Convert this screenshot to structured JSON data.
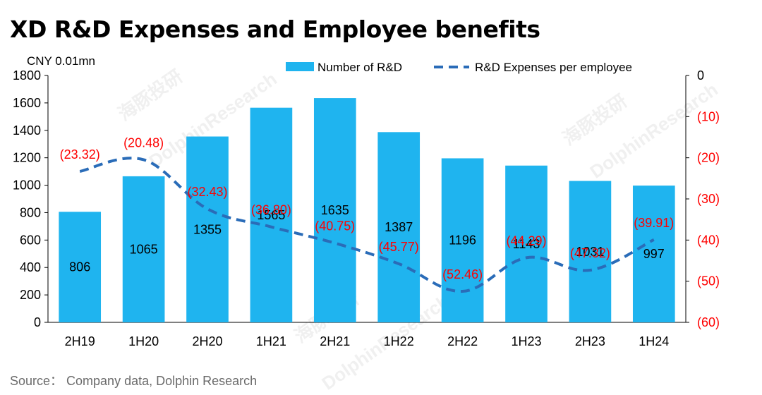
{
  "title": "XD R&D Expenses and Employee benefits",
  "unit_label": "CNY 0.01mn",
  "source": "Source： Company data, Dolphin Research",
  "watermarks": [
    "海豚投研",
    "DolphinResearch",
    "海豚投研",
    "DolphinResearch",
    "海豚投研",
    "DolphinResearch"
  ],
  "colors": {
    "bar": "#1fb4ef",
    "line": "#2a6cb8",
    "neg_label": "#ff0000",
    "axis": "#000000"
  },
  "chart_data": {
    "type": "bar+line",
    "categories": [
      "2H19",
      "1H20",
      "2H20",
      "1H21",
      "2H21",
      "1H22",
      "2H22",
      "1H23",
      "2H23",
      "1H24"
    ],
    "series": [
      {
        "name": "Number of R&D",
        "type": "bar",
        "axis": "left",
        "values": [
          806,
          1065,
          1355,
          1565,
          1635,
          1387,
          1196,
          1143,
          1031,
          997
        ],
        "labels": [
          "806",
          "1065",
          "1355",
          "1565",
          "1635",
          "1387",
          "1196",
          "1143",
          "1031",
          "997"
        ]
      },
      {
        "name": "R&D Expenses per employee",
        "type": "line",
        "style": "dashed",
        "axis": "right",
        "values": [
          -23.32,
          -20.48,
          -32.43,
          -36.8,
          -40.75,
          -45.77,
          -52.46,
          -44.29,
          -47.32,
          -39.91
        ],
        "labels": [
          "(23.32)",
          "(20.48)",
          "(32.43)",
          "(36.80)",
          "(40.75)",
          "(45.77)",
          "(52.46)",
          "(44.29)",
          "(47.32)",
          "(39.91)"
        ]
      }
    ],
    "y_left": {
      "min": 0,
      "max": 1800,
      "ticks": [
        "0",
        "200",
        "400",
        "600",
        "800",
        "1000",
        "1200",
        "1400",
        "1600",
        "1800"
      ]
    },
    "y_right": {
      "min": -60,
      "max": 0,
      "ticks": [
        "0",
        "(10)",
        "(20)",
        "(30)",
        "(40)",
        "(50)",
        "(60)"
      ]
    },
    "legend_position": "top-right"
  }
}
